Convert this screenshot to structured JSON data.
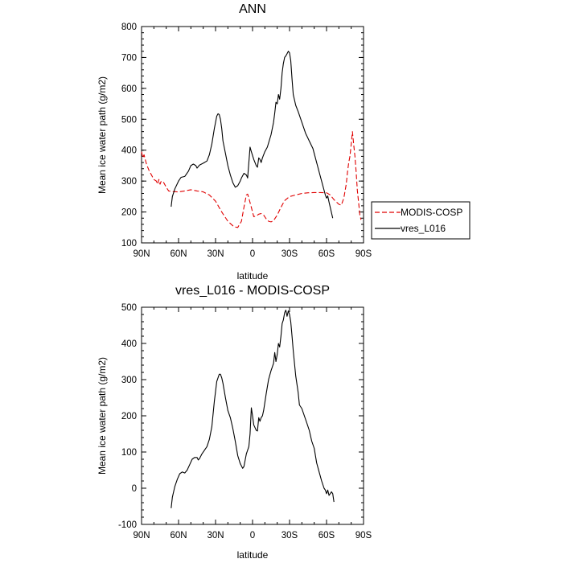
{
  "chart_data": [
    {
      "type": "line",
      "title": "ANN",
      "xlabel": "latitude",
      "ylabel": "Mean ice water path (g/m2)",
      "xlim": [
        -90,
        90
      ],
      "ylim": [
        100,
        800
      ],
      "x_ticks": [
        {
          "v": -90,
          "label": "90N"
        },
        {
          "v": -60,
          "label": "60N"
        },
        {
          "v": -30,
          "label": "30N"
        },
        {
          "v": 0,
          "label": "0"
        },
        {
          "v": 30,
          "label": "30S"
        },
        {
          "v": 60,
          "label": "60S"
        },
        {
          "v": 90,
          "label": "90S"
        }
      ],
      "y_ticks": [
        {
          "v": 100,
          "label": "100"
        },
        {
          "v": 200,
          "label": "200"
        },
        {
          "v": 300,
          "label": "300"
        },
        {
          "v": 400,
          "label": "400"
        },
        {
          "v": 500,
          "label": "500"
        },
        {
          "v": 600,
          "label": "600"
        },
        {
          "v": 700,
          "label": "700"
        },
        {
          "v": 800,
          "label": "800"
        }
      ],
      "legend": [
        {
          "label": "MODIS-COSP",
          "color": "#e00000",
          "dash": "dashed"
        },
        {
          "label": "vres_L016",
          "color": "#000000",
          "dash": "solid"
        }
      ],
      "series": [
        {
          "name": "MODIS-COSP",
          "color": "#e00000",
          "dash": "dashed",
          "points": [
            [
              -90,
              395
            ],
            [
              -89,
              375
            ],
            [
              -88,
              385
            ],
            [
              -87,
              370
            ],
            [
              -86,
              355
            ],
            [
              -84,
              335
            ],
            [
              -82,
              320
            ],
            [
              -80,
              305
            ],
            [
              -78,
              300
            ],
            [
              -77,
              290
            ],
            [
              -76,
              305
            ],
            [
              -75,
              290
            ],
            [
              -74,
              300
            ],
            [
              -72,
              295
            ],
            [
              -70,
              280
            ],
            [
              -68,
              268
            ],
            [
              -65,
              266
            ],
            [
              -60,
              265
            ],
            [
              -55,
              268
            ],
            [
              -50,
              272
            ],
            [
              -45,
              268
            ],
            [
              -40,
              265
            ],
            [
              -35,
              255
            ],
            [
              -30,
              235
            ],
            [
              -25,
              200
            ],
            [
              -20,
              170
            ],
            [
              -15,
              152
            ],
            [
              -12,
              150
            ],
            [
              -9,
              170
            ],
            [
              -7,
              215
            ],
            [
              -5,
              255
            ],
            [
              -4,
              258
            ],
            [
              -3,
              245
            ],
            [
              -1,
              215
            ],
            [
              1,
              185
            ],
            [
              3,
              187
            ],
            [
              5,
              193
            ],
            [
              7,
              195
            ],
            [
              9,
              190
            ],
            [
              11,
              178
            ],
            [
              13,
              170
            ],
            [
              15,
              168
            ],
            [
              17,
              172
            ],
            [
              20,
              190
            ],
            [
              23,
              215
            ],
            [
              26,
              237
            ],
            [
              30,
              250
            ],
            [
              35,
              255
            ],
            [
              40,
              260
            ],
            [
              45,
              262
            ],
            [
              50,
              263
            ],
            [
              55,
              263
            ],
            [
              60,
              262
            ],
            [
              63,
              255
            ],
            [
              66,
              240
            ],
            [
              70,
              225
            ],
            [
              72,
              222
            ],
            [
              74,
              245
            ],
            [
              76,
              290
            ],
            [
              77,
              330
            ],
            [
              78,
              360
            ],
            [
              79,
              380
            ],
            [
              80,
              420
            ],
            [
              81,
              460
            ],
            [
              82,
              420
            ],
            [
              83,
              380
            ],
            [
              84,
              330
            ],
            [
              85,
              270
            ],
            [
              86,
              230
            ],
            [
              87,
              190
            ],
            [
              88,
              175
            ]
          ]
        },
        {
          "name": "vres_L016",
          "color": "#000000",
          "dash": "solid",
          "points": [
            [
              -66,
              217
            ],
            [
              -65,
              250
            ],
            [
              -63,
              275
            ],
            [
              -60,
              300
            ],
            [
              -58,
              312
            ],
            [
              -55,
              315
            ],
            [
              -52,
              332
            ],
            [
              -50,
              350
            ],
            [
              -48,
              355
            ],
            [
              -46,
              350
            ],
            [
              -45,
              342
            ],
            [
              -43,
              352
            ],
            [
              -40,
              358
            ],
            [
              -37,
              365
            ],
            [
              -35,
              385
            ],
            [
              -33,
              420
            ],
            [
              -31,
              470
            ],
            [
              -29,
              510
            ],
            [
              -28,
              518
            ],
            [
              -27,
              515
            ],
            [
              -26,
              500
            ],
            [
              -25,
              470
            ],
            [
              -24,
              430
            ],
            [
              -22,
              390
            ],
            [
              -20,
              350
            ],
            [
              -18,
              320
            ],
            [
              -16,
              295
            ],
            [
              -14,
              280
            ],
            [
              -12,
              285
            ],
            [
              -10,
              300
            ],
            [
              -9,
              310
            ],
            [
              -7,
              325
            ],
            [
              -5,
              320
            ],
            [
              -4,
              310
            ],
            [
              -3,
              360
            ],
            [
              -2,
              410
            ],
            [
              -1,
              395
            ],
            [
              1,
              370
            ],
            [
              3,
              350
            ],
            [
              4,
              345
            ],
            [
              5,
              375
            ],
            [
              6,
              370
            ],
            [
              7,
              360
            ],
            [
              8,
              375
            ],
            [
              10,
              395
            ],
            [
              12,
              410
            ],
            [
              15,
              450
            ],
            [
              17,
              490
            ],
            [
              18,
              520
            ],
            [
              19,
              555
            ],
            [
              20,
              550
            ],
            [
              21,
              580
            ],
            [
              22,
              565
            ],
            [
              23,
              600
            ],
            [
              24,
              650
            ],
            [
              25,
              680
            ],
            [
              26,
              700
            ],
            [
              27,
              705
            ],
            [
              28,
              712
            ],
            [
              29,
              720
            ],
            [
              30,
              715
            ],
            [
              31,
              690
            ],
            [
              32,
              630
            ],
            [
              33,
              580
            ],
            [
              35,
              545
            ],
            [
              37,
              525
            ],
            [
              40,
              490
            ],
            [
              43,
              455
            ],
            [
              46,
              430
            ],
            [
              49,
              405
            ],
            [
              52,
              360
            ],
            [
              55,
              315
            ],
            [
              57,
              285
            ],
            [
              59,
              255
            ],
            [
              60,
              245
            ],
            [
              61,
              252
            ],
            [
              62,
              232
            ],
            [
              63,
              215
            ],
            [
              64,
              198
            ],
            [
              65,
              180
            ]
          ]
        }
      ]
    },
    {
      "type": "line",
      "title": "vres_L016 - MODIS-COSP",
      "xlabel": "latitude",
      "ylabel": "Mean ice water path (g/m2)",
      "xlim": [
        -90,
        90
      ],
      "ylim": [
        -100,
        500
      ],
      "x_ticks": [
        {
          "v": -90,
          "label": "90N"
        },
        {
          "v": -60,
          "label": "60N"
        },
        {
          "v": -30,
          "label": "30N"
        },
        {
          "v": 0,
          "label": "0"
        },
        {
          "v": 30,
          "label": "30S"
        },
        {
          "v": 60,
          "label": "60S"
        },
        {
          "v": 90,
          "label": "90S"
        }
      ],
      "y_ticks": [
        {
          "v": -100,
          "label": "-100"
        },
        {
          "v": 0,
          "label": "0"
        },
        {
          "v": 100,
          "label": "100"
        },
        {
          "v": 200,
          "label": "200"
        },
        {
          "v": 300,
          "label": "300"
        },
        {
          "v": 400,
          "label": "400"
        },
        {
          "v": 500,
          "label": "500"
        }
      ],
      "legend": [],
      "series": [
        {
          "name": "vres_L016 - MODIS-COSP",
          "color": "#000000",
          "dash": "solid",
          "points": [
            [
              -66,
              -55
            ],
            [
              -65,
              -25
            ],
            [
              -63,
              5
            ],
            [
              -61,
              25
            ],
            [
              -59,
              40
            ],
            [
              -57,
              45
            ],
            [
              -55,
              42
            ],
            [
              -53,
              50
            ],
            [
              -51,
              65
            ],
            [
              -49,
              80
            ],
            [
              -47,
              85
            ],
            [
              -45,
              85
            ],
            [
              -44,
              78
            ],
            [
              -43,
              82
            ],
            [
              -41,
              95
            ],
            [
              -39,
              105
            ],
            [
              -37,
              115
            ],
            [
              -35,
              135
            ],
            [
              -33,
              170
            ],
            [
              -31,
              240
            ],
            [
              -29,
              295
            ],
            [
              -27,
              315
            ],
            [
              -26,
              315
            ],
            [
              -25,
              305
            ],
            [
              -24,
              290
            ],
            [
              -22,
              250
            ],
            [
              -20,
              215
            ],
            [
              -18,
              195
            ],
            [
              -16,
              165
            ],
            [
              -14,
              130
            ],
            [
              -12,
              90
            ],
            [
              -10,
              68
            ],
            [
              -8,
              55
            ],
            [
              -7,
              60
            ],
            [
              -5,
              95
            ],
            [
              -3,
              115
            ],
            [
              -2,
              150
            ],
            [
              -1,
              222
            ],
            [
              0,
              200
            ],
            [
              1,
              175
            ],
            [
              3,
              160
            ],
            [
              4,
              158
            ],
            [
              5,
              195
            ],
            [
              6,
              185
            ],
            [
              7,
              195
            ],
            [
              8,
              200
            ],
            [
              9,
              215
            ],
            [
              11,
              260
            ],
            [
              13,
              300
            ],
            [
              15,
              325
            ],
            [
              17,
              345
            ],
            [
              18,
              375
            ],
            [
              19,
              350
            ],
            [
              20,
              370
            ],
            [
              21,
              400
            ],
            [
              22,
              390
            ],
            [
              23,
              420
            ],
            [
              24,
              455
            ],
            [
              25,
              465
            ],
            [
              26,
              485
            ],
            [
              27,
              492
            ],
            [
              28,
              475
            ],
            [
              29,
              490
            ],
            [
              30,
              480
            ],
            [
              31,
              460
            ],
            [
              32,
              420
            ],
            [
              33,
              380
            ],
            [
              35,
              310
            ],
            [
              37,
              265
            ],
            [
              38,
              230
            ],
            [
              40,
              220
            ],
            [
              42,
              200
            ],
            [
              44,
              180
            ],
            [
              46,
              160
            ],
            [
              48,
              130
            ],
            [
              50,
              110
            ],
            [
              52,
              70
            ],
            [
              54,
              45
            ],
            [
              56,
              20
            ],
            [
              58,
              0
            ],
            [
              59,
              -5
            ],
            [
              60,
              -15
            ],
            [
              61,
              -5
            ],
            [
              62,
              -20
            ],
            [
              63,
              -15
            ],
            [
              64,
              -10
            ],
            [
              65,
              -15
            ],
            [
              66,
              -38
            ]
          ]
        }
      ]
    }
  ]
}
